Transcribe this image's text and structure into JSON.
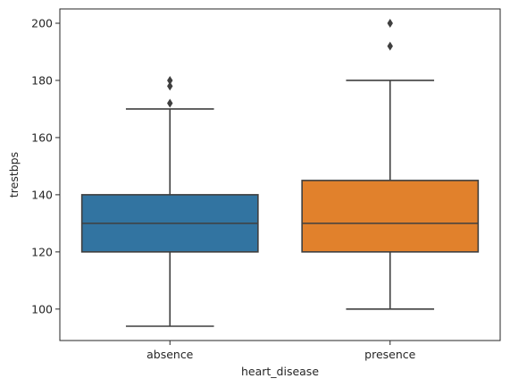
{
  "chart_data": {
    "type": "box",
    "title": "",
    "xlabel": "heart_disease",
    "ylabel": "trestbps",
    "ylim": [
      89,
      205
    ],
    "yticks": [
      100,
      120,
      140,
      160,
      180,
      200
    ],
    "grid": false,
    "categories": [
      "absence",
      "presence"
    ],
    "series": [
      {
        "category": "absence",
        "color": "#3274a1",
        "whisker_low": 94,
        "q1": 120,
        "median": 130,
        "q3": 140,
        "whisker_high": 170,
        "outliers": [
          172,
          178,
          180
        ]
      },
      {
        "category": "presence",
        "color": "#e1812c",
        "whisker_low": 100,
        "q1": 120,
        "median": 130,
        "q3": 145,
        "whisker_high": 180,
        "outliers": [
          192,
          200
        ]
      }
    ]
  }
}
